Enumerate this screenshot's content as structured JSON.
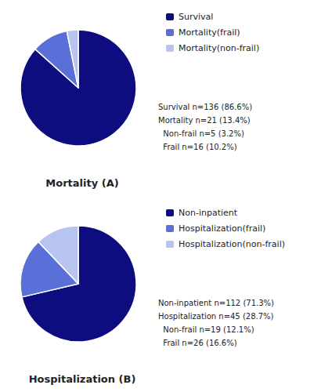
{
  "chart_data": [
    {
      "type": "pie",
      "title": "Mortality (A)",
      "categories": [
        "Survival",
        "Mortality(frail)",
        "Mortality(non-frail)"
      ],
      "values": [
        136,
        16,
        5
      ],
      "colors": [
        "#0D0D80",
        "#5B6FD8",
        "#B8C4F0"
      ],
      "annotations": [
        "Survival n=136 (86.6%)",
        "Mortality n=21 (13.4%)",
        "  Non-frail n=5 (3.2%)",
        "  Frail n=16 (10.2%)"
      ],
      "legend": "right"
    },
    {
      "type": "pie",
      "title": "Hospitalization (B)",
      "categories": [
        "Non-inpatient",
        "Hospitalization(frail)",
        "Hospitalization(non-frail)"
      ],
      "values": [
        112,
        26,
        19
      ],
      "colors": [
        "#0D0D80",
        "#5B6FD8",
        "#B8C4F0"
      ],
      "annotations": [
        "Non-inpatient n=112 (71.3%)",
        "Hospitalization n=45 (28.7%)",
        "  Non-frail n=19 (12.1%)",
        "  Frail n=26 (16.6%)"
      ],
      "legend": "right"
    }
  ]
}
